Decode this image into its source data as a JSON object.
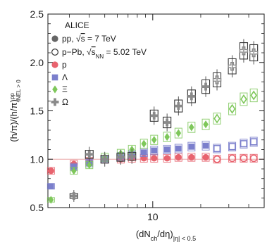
{
  "chart_data": {
    "type": "scatter",
    "x_scale": "log",
    "xlim": [
      2.2,
      50
    ],
    "ylim": [
      0.5,
      2.5
    ],
    "x_ticks": [
      {
        "value": 10,
        "label": "10"
      }
    ],
    "y_ticks": [
      {
        "value": 0.5,
        "label": "0.5"
      },
      {
        "value": 1.0,
        "label": "1.0"
      },
      {
        "value": 1.5,
        "label": "1.5"
      },
      {
        "value": 2.0,
        "label": "2.0"
      },
      {
        "value": 2.5,
        "label": "2.5"
      }
    ],
    "xlabel_parts": [
      "(dN",
      "ch",
      "/dη)",
      "|η| < 0.5"
    ],
    "ylabel_parts": [
      "(h/π)/(h/π)",
      "pp",
      "INEL > 0"
    ],
    "reference_line": 1.0,
    "legend": {
      "placement": "top-left",
      "title": "ALICE",
      "systems": [
        {
          "marker": "filled-circle",
          "parts": [
            "pp, ",
            "s",
            " = 7 TeV"
          ],
          "sub": ""
        },
        {
          "marker": "open-circle",
          "parts": [
            "p−Pb, ",
            "s",
            " = 5.02 TeV"
          ],
          "sub": "NN"
        }
      ],
      "species": [
        {
          "label": "p",
          "marker": "circle",
          "color": "#e8636e"
        },
        {
          "label": "Λ",
          "marker": "square",
          "color": "#7b7fcc"
        },
        {
          "label": "Ξ",
          "marker": "diamond",
          "color": "#7ec75a"
        },
        {
          "label": "Ω",
          "marker": "cross",
          "color": "#8a8a8a"
        }
      ]
    },
    "series": [
      {
        "name": "p",
        "color": "#e8636e",
        "marker": "circle",
        "system": "pp",
        "x": [
          2.3,
          3.2,
          4.0,
          5.0,
          6.3,
          7.4,
          8.8,
          10.2,
          12.3,
          14.5,
          17.5,
          21.5
        ],
        "y": [
          0.88,
          0.95,
          0.98,
          1.0,
          1.0,
          1.01,
          1.01,
          1.01,
          1.01,
          1.02,
          1.02,
          1.02
        ]
      },
      {
        "name": "p",
        "color": "#e8636e",
        "marker": "circle",
        "system": "p-Pb",
        "x": [
          25.3,
          31.5,
          37.2,
          43.0
        ],
        "y": [
          1.0,
          1.01,
          1.01,
          1.01
        ]
      },
      {
        "name": "Λ",
        "color": "#7b7fcc",
        "marker": "square",
        "system": "pp",
        "x": [
          2.3,
          3.2,
          4.0,
          5.0,
          6.3,
          7.4,
          8.8,
          10.2,
          12.3,
          14.5,
          17.5,
          21.5
        ],
        "y": [
          0.72,
          0.92,
          0.96,
          1.0,
          1.03,
          1.05,
          1.07,
          1.09,
          1.1,
          1.11,
          1.13,
          1.14
        ]
      },
      {
        "name": "Λ",
        "color": "#7b7fcc",
        "marker": "square",
        "system": "p-Pb",
        "x": [
          25.3,
          31.5,
          37.2,
          43.0
        ],
        "y": [
          1.11,
          1.13,
          1.16,
          1.18
        ]
      },
      {
        "name": "Ξ",
        "color": "#7ec75a",
        "marker": "diamond",
        "system": "pp",
        "x": [
          2.3,
          3.2,
          4.0,
          5.0,
          6.3,
          7.4,
          8.8,
          10.2,
          12.3,
          14.5,
          17.5,
          21.5
        ],
        "y": [
          0.58,
          0.88,
          0.94,
          1.02,
          1.06,
          1.1,
          1.16,
          1.2,
          1.23,
          1.27,
          1.33,
          1.36
        ]
      },
      {
        "name": "Ξ",
        "color": "#7ec75a",
        "marker": "diamond",
        "system": "p-Pb",
        "x": [
          25.3,
          31.5,
          37.2,
          43.0
        ],
        "y": [
          1.42,
          1.52,
          1.62,
          1.66
        ]
      },
      {
        "name": "Ω",
        "color": "#8a8a8a",
        "marker": "cross",
        "system": "pp",
        "x": [
          3.2,
          4.0,
          5.0,
          6.3,
          7.4,
          10.2,
          12.3,
          14.5,
          17.5,
          21.5
        ],
        "y": [
          0.62,
          1.05,
          1.0,
          1.02,
          1.03,
          1.45,
          1.38,
          1.55,
          1.65,
          1.75
        ]
      },
      {
        "name": "Ω",
        "color": "#8a8a8a",
        "marker": "cross",
        "system": "p-Pb",
        "x": [
          25.3,
          31.5,
          37.2,
          43.0
        ],
        "y": [
          1.82,
          1.96,
          2.12,
          2.1
        ]
      }
    ]
  }
}
